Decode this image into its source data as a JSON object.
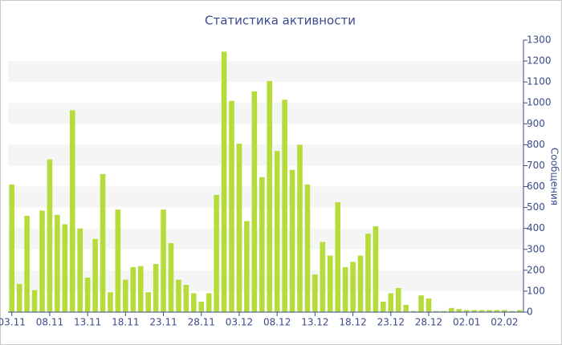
{
  "chart_data": {
    "type": "bar",
    "title": "Статистика активности",
    "y_label": "Сообщения",
    "categories": [
      "03.11",
      null,
      null,
      null,
      null,
      "08.11",
      null,
      null,
      null,
      null,
      "13.11",
      null,
      null,
      null,
      null,
      "18.11",
      null,
      null,
      null,
      null,
      "23.11",
      null,
      null,
      null,
      null,
      "28.11",
      null,
      null,
      null,
      null,
      "03.12",
      null,
      null,
      null,
      null,
      "08.12",
      null,
      null,
      null,
      null,
      "13.12",
      null,
      null,
      null,
      null,
      "18.12",
      null,
      null,
      null,
      null,
      "23.12",
      null,
      null,
      null,
      null,
      "28.12",
      null,
      null,
      null,
      null,
      "02.01",
      null,
      null,
      null,
      null,
      "02.02",
      null,
      null
    ],
    "values": [
      610,
      135,
      460,
      105,
      485,
      730,
      465,
      420,
      965,
      400,
      165,
      350,
      660,
      95,
      490,
      155,
      215,
      220,
      95,
      230,
      490,
      330,
      155,
      130,
      90,
      50,
      90,
      560,
      1245,
      1010,
      805,
      435,
      1055,
      645,
      1105,
      770,
      1015,
      680,
      800,
      610,
      180,
      335,
      270,
      525,
      215,
      240,
      270,
      375,
      410,
      50,
      90,
      115,
      35,
      5,
      80,
      65,
      5,
      5,
      20,
      15,
      10,
      10,
      10,
      10,
      10,
      10,
      5,
      10
    ],
    "color": "#b6dc3c",
    "ylim": [
      0,
      1300
    ],
    "yticks": [
      0,
      100,
      200,
      300,
      400,
      500,
      600,
      700,
      800,
      900,
      1000,
      1100,
      1200,
      1300
    ],
    "grid": "bands",
    "axis_side": "right"
  }
}
